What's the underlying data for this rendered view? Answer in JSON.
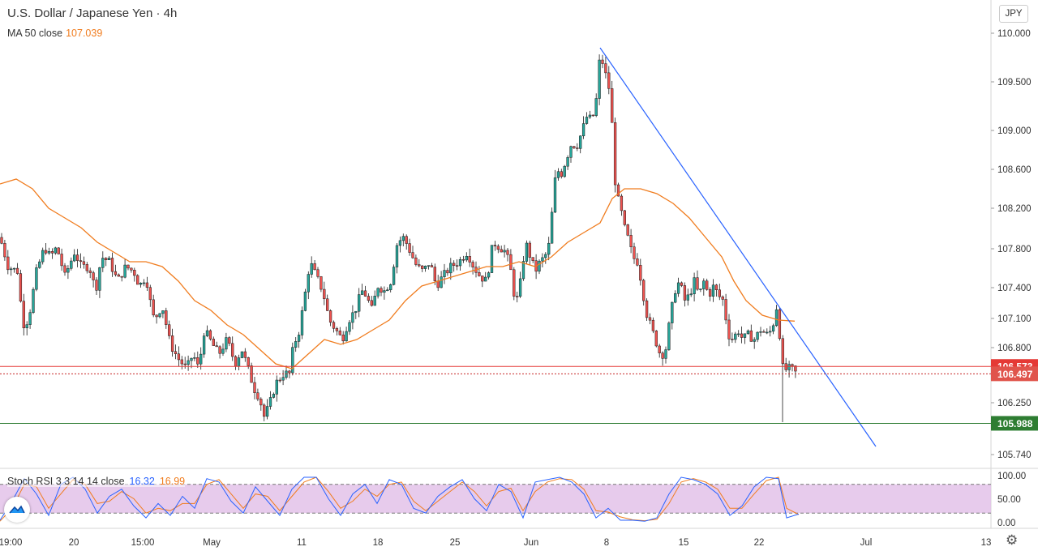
{
  "header": {
    "title": "U.S. Dollar / Japanese Yen · 4h",
    "ma_label": "MA 50 close",
    "ma_value": "107.039",
    "currency_button": "JPY"
  },
  "colors": {
    "bull": "#26a69a",
    "bear": "#ef5350",
    "candle_outline": "#1b1b1b",
    "ma": "#f07c1e",
    "trendline": "#2962ff",
    "resistance": "#e53935",
    "support": "#2e7d32",
    "stoch_k": "#2962ff",
    "stoch_d": "#f07c1e",
    "stoch_band": "#e1bee7"
  },
  "indicator": {
    "label": "Stoch RSI 3 3 14 14 close",
    "k_value": "16.32",
    "d_value": "16.99"
  },
  "icons": {
    "settings": "gear-icon",
    "logo": "tradingview-logo-icon"
  },
  "chart_data": {
    "type": "candlestick",
    "symbol": "USDJPY",
    "interval": "4h",
    "y_ticks": [
      "110.000",
      "109.500",
      "109.000",
      "108.600",
      "108.200",
      "107.800",
      "107.400",
      "107.100",
      "106.800",
      "106.250",
      "105.740"
    ],
    "x_ticks": [
      "19:00",
      "20",
      "15:00",
      "May",
      "11",
      "18",
      "25",
      "Jun",
      "8",
      "15",
      "22",
      "Jul",
      "13"
    ],
    "ylim": [
      105.6,
      110.25
    ],
    "price_labels": [
      {
        "value": 106.573,
        "text": "106.573",
        "kind": "resistance"
      },
      {
        "value": 106.497,
        "text": "106.497",
        "kind": "last"
      },
      {
        "value": 105.988,
        "text": "105.988",
        "kind": "support"
      }
    ],
    "price_path": [
      [
        0,
        107.9
      ],
      [
        10,
        107.6
      ],
      [
        22,
        107.55
      ],
      [
        28,
        107.0
      ],
      [
        35,
        107.05
      ],
      [
        45,
        107.55
      ],
      [
        55,
        107.8
      ],
      [
        62,
        107.7
      ],
      [
        70,
        107.8
      ],
      [
        80,
        107.5
      ],
      [
        92,
        107.75
      ],
      [
        100,
        107.6
      ],
      [
        110,
        107.6
      ],
      [
        118,
        107.35
      ],
      [
        125,
        107.7
      ],
      [
        135,
        107.65
      ],
      [
        145,
        107.45
      ],
      [
        155,
        107.6
      ],
      [
        165,
        107.55
      ],
      [
        172,
        107.4
      ],
      [
        180,
        107.5
      ],
      [
        185,
        107.25
      ],
      [
        190,
        107.05
      ],
      [
        200,
        107.2
      ],
      [
        210,
        106.8
      ],
      [
        220,
        106.65
      ],
      [
        230,
        106.55
      ],
      [
        238,
        106.7
      ],
      [
        245,
        106.55
      ],
      [
        252,
        106.95
      ],
      [
        262,
        106.8
      ],
      [
        270,
        106.7
      ],
      [
        280,
        106.85
      ],
      [
        290,
        106.6
      ],
      [
        298,
        106.75
      ],
      [
        306,
        106.55
      ],
      [
        313,
        106.35
      ],
      [
        320,
        106.25
      ],
      [
        326,
        106.05
      ],
      [
        333,
        106.2
      ],
      [
        340,
        106.4
      ],
      [
        350,
        106.5
      ],
      [
        357,
        106.5
      ],
      [
        362,
        106.8
      ],
      [
        368,
        106.9
      ],
      [
        375,
        107.25
      ],
      [
        382,
        107.65
      ],
      [
        390,
        107.5
      ],
      [
        398,
        107.35
      ],
      [
        406,
        107.05
      ],
      [
        414,
        106.95
      ],
      [
        422,
        106.85
      ],
      [
        430,
        107.05
      ],
      [
        438,
        107.15
      ],
      [
        446,
        107.35
      ],
      [
        452,
        107.3
      ],
      [
        458,
        107.15
      ],
      [
        466,
        107.4
      ],
      [
        474,
        107.35
      ],
      [
        482,
        107.45
      ],
      [
        490,
        107.85
      ],
      [
        498,
        107.9
      ],
      [
        506,
        107.75
      ],
      [
        514,
        107.6
      ],
      [
        522,
        107.55
      ],
      [
        530,
        107.65
      ],
      [
        538,
        107.4
      ],
      [
        546,
        107.5
      ],
      [
        556,
        107.6
      ],
      [
        566,
        107.65
      ],
      [
        576,
        107.75
      ],
      [
        584,
        107.6
      ],
      [
        592,
        107.5
      ],
      [
        600,
        107.45
      ],
      [
        608,
        107.85
      ],
      [
        616,
        107.8
      ],
      [
        624,
        107.75
      ],
      [
        630,
        107.55
      ],
      [
        636,
        107.2
      ],
      [
        642,
        107.45
      ],
      [
        648,
        107.85
      ],
      [
        654,
        107.7
      ],
      [
        660,
        107.55
      ],
      [
        666,
        107.65
      ],
      [
        672,
        107.7
      ],
      [
        678,
        107.85
      ],
      [
        682,
        108.3
      ],
      [
        686,
        108.6
      ],
      [
        692,
        108.55
      ],
      [
        698,
        108.7
      ],
      [
        704,
        108.85
      ],
      [
        712,
        108.85
      ],
      [
        718,
        109.0
      ],
      [
        724,
        109.15
      ],
      [
        730,
        109.1
      ],
      [
        736,
        109.35
      ],
      [
        740,
        109.8
      ],
      [
        746,
        109.6
      ],
      [
        752,
        109.4
      ],
      [
        756,
        108.9
      ],
      [
        760,
        108.25
      ],
      [
        764,
        108.3
      ],
      [
        768,
        108.05
      ],
      [
        772,
        107.95
      ],
      [
        776,
        107.85
      ],
      [
        780,
        107.7
      ],
      [
        786,
        107.65
      ],
      [
        792,
        107.4
      ],
      [
        796,
        107.15
      ],
      [
        802,
        107.0
      ],
      [
        808,
        106.85
      ],
      [
        814,
        106.7
      ],
      [
        820,
        106.7
      ],
      [
        826,
        107.05
      ],
      [
        832,
        107.35
      ],
      [
        838,
        107.45
      ],
      [
        844,
        107.25
      ],
      [
        850,
        107.3
      ],
      [
        856,
        107.45
      ],
      [
        862,
        107.3
      ],
      [
        868,
        107.45
      ],
      [
        874,
        107.3
      ],
      [
        880,
        107.4
      ],
      [
        886,
        107.3
      ],
      [
        892,
        107.25
      ],
      [
        898,
        106.9
      ],
      [
        904,
        106.85
      ],
      [
        910,
        106.95
      ],
      [
        916,
        106.85
      ],
      [
        922,
        106.9
      ],
      [
        930,
        106.85
      ],
      [
        938,
        106.95
      ],
      [
        946,
        106.9
      ],
      [
        952,
        106.95
      ],
      [
        958,
        107.2
      ],
      [
        962,
        106.85
      ],
      [
        966,
        106.5
      ],
      [
        970,
        106.55
      ],
      [
        976,
        106.55
      ],
      [
        982,
        106.5
      ]
    ],
    "ma_path": [
      [
        0,
        108.45
      ],
      [
        20,
        108.5
      ],
      [
        40,
        108.4
      ],
      [
        60,
        108.2
      ],
      [
        80,
        108.1
      ],
      [
        100,
        108.0
      ],
      [
        120,
        107.85
      ],
      [
        140,
        107.75
      ],
      [
        160,
        107.65
      ],
      [
        180,
        107.65
      ],
      [
        200,
        107.6
      ],
      [
        220,
        107.45
      ],
      [
        240,
        107.25
      ],
      [
        260,
        107.15
      ],
      [
        280,
        107.0
      ],
      [
        300,
        106.9
      ],
      [
        320,
        106.75
      ],
      [
        340,
        106.6
      ],
      [
        360,
        106.55
      ],
      [
        380,
        106.7
      ],
      [
        400,
        106.85
      ],
      [
        420,
        106.8
      ],
      [
        440,
        106.85
      ],
      [
        460,
        106.95
      ],
      [
        480,
        107.05
      ],
      [
        500,
        107.25
      ],
      [
        520,
        107.4
      ],
      [
        540,
        107.45
      ],
      [
        560,
        107.5
      ],
      [
        580,
        107.55
      ],
      [
        600,
        107.6
      ],
      [
        620,
        107.6
      ],
      [
        640,
        107.65
      ],
      [
        660,
        107.6
      ],
      [
        680,
        107.7
      ],
      [
        700,
        107.85
      ],
      [
        720,
        107.95
      ],
      [
        740,
        108.05
      ],
      [
        755,
        108.3
      ],
      [
        770,
        108.4
      ],
      [
        790,
        108.4
      ],
      [
        810,
        108.35
      ],
      [
        830,
        108.25
      ],
      [
        850,
        108.1
      ],
      [
        870,
        107.9
      ],
      [
        890,
        107.7
      ],
      [
        905,
        107.45
      ],
      [
        920,
        107.25
      ],
      [
        940,
        107.1
      ],
      [
        960,
        107.05
      ],
      [
        980,
        107.039
      ]
    ],
    "trendline": {
      "from": [
        740,
        109.85
      ],
      "to": [
        1080,
        105.75
      ]
    },
    "horizontal_levels": [
      106.573,
      105.988
    ],
    "stoch_rsi": {
      "ylim": [
        0,
        100
      ],
      "bands": [
        80,
        20
      ],
      "ticks": [
        "100.00",
        "50.00",
        "0.00"
      ],
      "k_path": [
        [
          0,
          5
        ],
        [
          15,
          45
        ],
        [
          30,
          92
        ],
        [
          45,
          60
        ],
        [
          60,
          15
        ],
        [
          75,
          80
        ],
        [
          90,
          95
        ],
        [
          105,
          70
        ],
        [
          120,
          20
        ],
        [
          135,
          55
        ],
        [
          150,
          70
        ],
        [
          165,
          35
        ],
        [
          180,
          10
        ],
        [
          195,
          40
        ],
        [
          210,
          15
        ],
        [
          225,
          55
        ],
        [
          240,
          30
        ],
        [
          255,
          92
        ],
        [
          270,
          85
        ],
        [
          285,
          45
        ],
        [
          300,
          20
        ],
        [
          315,
          75
        ],
        [
          330,
          45
        ],
        [
          345,
          15
        ],
        [
          360,
          70
        ],
        [
          375,
          95
        ],
        [
          390,
          95
        ],
        [
          405,
          50
        ],
        [
          420,
          15
        ],
        [
          435,
          60
        ],
        [
          450,
          80
        ],
        [
          465,
          40
        ],
        [
          480,
          90
        ],
        [
          495,
          80
        ],
        [
          510,
          30
        ],
        [
          525,
          20
        ],
        [
          540,
          55
        ],
        [
          555,
          75
        ],
        [
          570,
          90
        ],
        [
          585,
          50
        ],
        [
          600,
          25
        ],
        [
          615,
          80
        ],
        [
          630,
          65
        ],
        [
          645,
          10
        ],
        [
          660,
          85
        ],
        [
          675,
          90
        ],
        [
          690,
          95
        ],
        [
          705,
          85
        ],
        [
          720,
          60
        ],
        [
          735,
          10
        ],
        [
          750,
          30
        ],
        [
          765,
          5
        ],
        [
          780,
          5
        ],
        [
          795,
          3
        ],
        [
          810,
          10
        ],
        [
          825,
          60
        ],
        [
          840,
          95
        ],
        [
          855,
          90
        ],
        [
          870,
          80
        ],
        [
          885,
          60
        ],
        [
          900,
          15
        ],
        [
          915,
          35
        ],
        [
          930,
          75
        ],
        [
          945,
          95
        ],
        [
          960,
          92
        ],
        [
          970,
          10
        ],
        [
          985,
          18
        ]
      ],
      "d_path": [
        [
          0,
          3
        ],
        [
          15,
          30
        ],
        [
          30,
          80
        ],
        [
          45,
          75
        ],
        [
          60,
          30
        ],
        [
          75,
          60
        ],
        [
          90,
          90
        ],
        [
          105,
          80
        ],
        [
          120,
          40
        ],
        [
          135,
          45
        ],
        [
          150,
          65
        ],
        [
          165,
          50
        ],
        [
          180,
          20
        ],
        [
          195,
          30
        ],
        [
          210,
          25
        ],
        [
          225,
          40
        ],
        [
          240,
          40
        ],
        [
          255,
          80
        ],
        [
          270,
          90
        ],
        [
          285,
          60
        ],
        [
          300,
          30
        ],
        [
          315,
          60
        ],
        [
          330,
          55
        ],
        [
          345,
          25
        ],
        [
          360,
          55
        ],
        [
          375,
          85
        ],
        [
          390,
          95
        ],
        [
          405,
          65
        ],
        [
          420,
          30
        ],
        [
          435,
          45
        ],
        [
          450,
          70
        ],
        [
          465,
          55
        ],
        [
          480,
          80
        ],
        [
          495,
          85
        ],
        [
          510,
          45
        ],
        [
          525,
          25
        ],
        [
          540,
          45
        ],
        [
          555,
          65
        ],
        [
          570,
          85
        ],
        [
          585,
          65
        ],
        [
          600,
          35
        ],
        [
          615,
          65
        ],
        [
          630,
          72
        ],
        [
          645,
          25
        ],
        [
          660,
          65
        ],
        [
          675,
          85
        ],
        [
          690,
          92
        ],
        [
          705,
          90
        ],
        [
          720,
          70
        ],
        [
          735,
          25
        ],
        [
          750,
          22
        ],
        [
          765,
          12
        ],
        [
          780,
          6
        ],
        [
          795,
          4
        ],
        [
          810,
          7
        ],
        [
          825,
          40
        ],
        [
          840,
          85
        ],
        [
          855,
          92
        ],
        [
          870,
          85
        ],
        [
          885,
          70
        ],
        [
          900,
          30
        ],
        [
          915,
          30
        ],
        [
          930,
          60
        ],
        [
          945,
          88
        ],
        [
          960,
          95
        ],
        [
          970,
          30
        ],
        [
          985,
          17
        ]
      ]
    }
  }
}
